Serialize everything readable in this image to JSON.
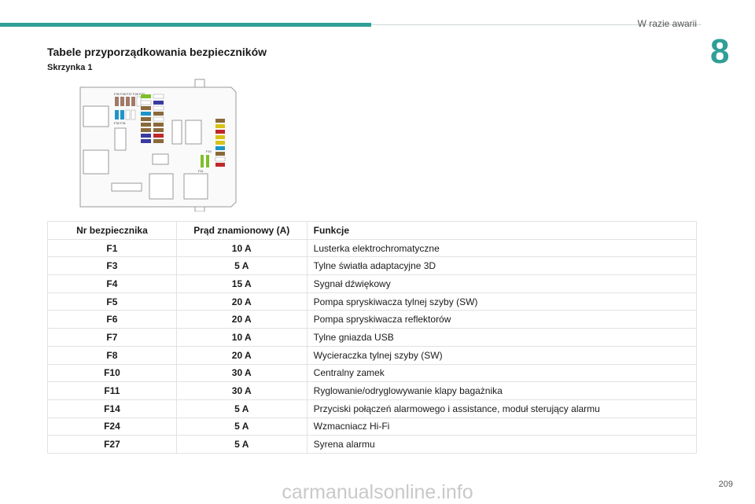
{
  "header": {
    "section_title": "W razie awarii",
    "chapter_number": "8"
  },
  "heading": "Tabele przyporządkowania bezpieczników",
  "subheading": "Skrzynka 1",
  "diagram": {
    "labels": {
      "top_group": "F30 F28 F27 F26 F23",
      "left_group": "F32 F31",
      "f10": "F10",
      "f11": "F11"
    }
  },
  "table": {
    "headers": [
      "Nr bezpiecznika",
      "Prąd znamionowy (A)",
      "Funkcje"
    ],
    "rows": [
      {
        "fuse": "F1",
        "amp": "10 A",
        "func": "Lusterka elektrochromatyczne"
      },
      {
        "fuse": "F3",
        "amp": "5 A",
        "func": "Tylne światła adaptacyjne 3D"
      },
      {
        "fuse": "F4",
        "amp": "15 A",
        "func": "Sygnał dźwiękowy"
      },
      {
        "fuse": "F5",
        "amp": "20 A",
        "func": "Pompa spryskiwacza tylnej szyby (SW)"
      },
      {
        "fuse": "F6",
        "amp": "20 A",
        "func": "Pompa spryskiwacza reflektorów"
      },
      {
        "fuse": "F7",
        "amp": "10 A",
        "func": "Tylne gniazda USB"
      },
      {
        "fuse": "F8",
        "amp": "20 A",
        "func": "Wycieraczka tylnej szyby (SW)"
      },
      {
        "fuse": "F10",
        "amp": "30 A",
        "func": "Centralny zamek"
      },
      {
        "fuse": "F11",
        "amp": "30 A",
        "func": "Ryglowanie/odryglowywanie klapy bagażnika"
      },
      {
        "fuse": "F14",
        "amp": "5 A",
        "func": "Przyciski połączeń alarmowego i assistance, moduł sterujący alarmu"
      },
      {
        "fuse": "F24",
        "amp": "5 A",
        "func": "Wzmacniacz Hi-Fi"
      },
      {
        "fuse": "F27",
        "amp": "5 A",
        "func": "Syrena alarmu"
      }
    ]
  },
  "page_number": "209",
  "watermark": "carmanualsonline.info",
  "colors": {
    "accent": "#2f9f97",
    "table_border": "#e2e2e2",
    "watermark": "#c9c9c9"
  }
}
